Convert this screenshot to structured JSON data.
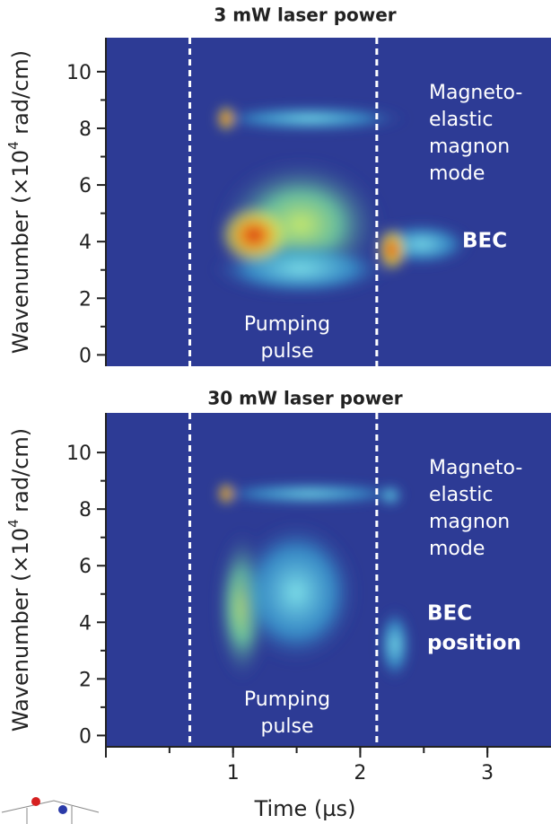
{
  "chart_data": [
    {
      "type": "heatmap",
      "title": "3 mW laser power",
      "title_color": "#3b3b9c",
      "ylabel": [
        "Wavenumber (×10",
        "4",
        " rad/cm)"
      ],
      "xlim": [
        0,
        3.5
      ],
      "ylim": [
        -0.4,
        11.2
      ],
      "yticks": [
        0,
        2,
        4,
        6,
        8,
        10
      ],
      "vlines": [
        0.66,
        2.13
      ],
      "annotations": {
        "mode": [
          "Magneto-",
          "elastic",
          "magnon",
          "mode"
        ],
        "bec": [
          "BEC"
        ],
        "pulse": [
          "Pumping",
          "pulse"
        ]
      }
    },
    {
      "type": "heatmap",
      "title": "30 mW laser power",
      "title_color": "#e0202a",
      "ylabel": [
        "Wavenumber (×10",
        "4",
        " rad/cm)"
      ],
      "xlabel": "Time (µs)",
      "xlim": [
        0,
        3.5
      ],
      "ylim": [
        -0.4,
        11.4
      ],
      "xticks": [
        1,
        2,
        3
      ],
      "yticks": [
        0,
        2,
        4,
        6,
        8,
        10
      ],
      "vlines": [
        0.66,
        2.13
      ],
      "annotations": {
        "mode": [
          "Magneto-",
          "elastic",
          "magnon",
          "mode"
        ],
        "bec": [
          "BEC",
          "position"
        ],
        "pulse": [
          "Pumping",
          "pulse"
        ]
      }
    }
  ]
}
